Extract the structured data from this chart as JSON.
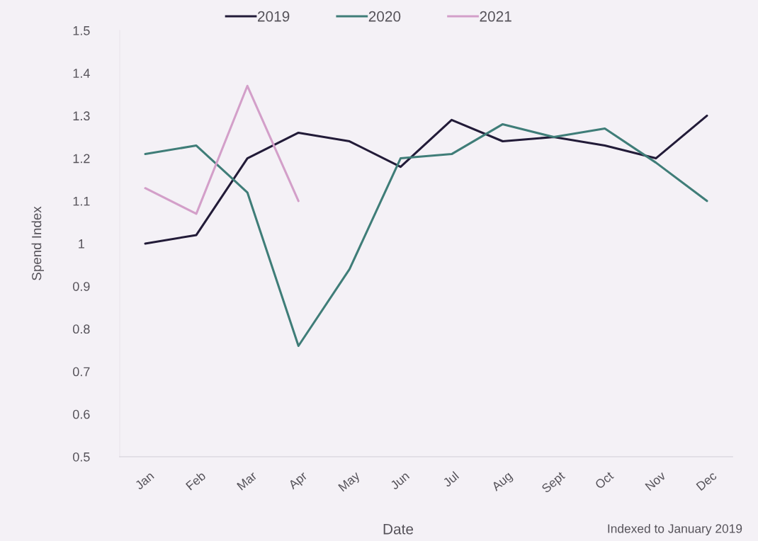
{
  "chart_data": {
    "type": "line",
    "xlabel": "Date",
    "ylabel": "Spend Index",
    "annotations": [
      "Indexed to January 2019"
    ],
    "categories": [
      "Jan",
      "Feb",
      "Mar",
      "Apr",
      "May",
      "Jun",
      "Jul",
      "Aug",
      "Sept",
      "Oct",
      "Nov",
      "Dec"
    ],
    "series": [
      {
        "name": "2019",
        "color": "#221b38",
        "values": [
          1.0,
          1.02,
          1.2,
          1.26,
          1.24,
          1.18,
          1.29,
          1.24,
          1.25,
          1.23,
          1.2,
          1.3
        ]
      },
      {
        "name": "2020",
        "color": "#3f7d78",
        "values": [
          1.21,
          1.23,
          1.12,
          0.76,
          0.94,
          1.2,
          1.21,
          1.28,
          1.25,
          1.27,
          1.19,
          1.1
        ]
      },
      {
        "name": "2021",
        "color": "#d39fc9",
        "values": [
          1.13,
          1.07,
          1.37,
          1.1,
          null,
          null,
          null,
          null,
          null,
          null,
          null,
          null
        ]
      }
    ],
    "ylim": [
      0.5,
      1.5
    ],
    "yticks": [
      0.5,
      0.6,
      0.7,
      0.8,
      0.9,
      1,
      1.1,
      1.2,
      1.3,
      1.4,
      1.5
    ],
    "legend": "top",
    "line_style": "solid"
  }
}
